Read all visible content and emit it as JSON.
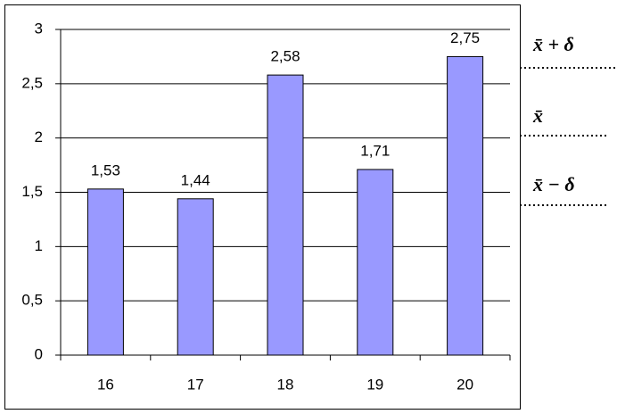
{
  "chart_data": {
    "type": "bar",
    "categories": [
      "16",
      "17",
      "18",
      "19",
      "20"
    ],
    "values": [
      1.53,
      1.44,
      2.58,
      1.71,
      2.75
    ],
    "value_labels": [
      "1,53",
      "1,44",
      "2,58",
      "1,71",
      "2,75"
    ],
    "color": "#9999ff",
    "ylim": [
      0,
      3
    ],
    "yticks": [
      0,
      {
        "value": 0.5,
        "label": "0,5"
      },
      1,
      {
        "value": 1.5,
        "label": "1,5"
      },
      2,
      {
        "value": 2.5,
        "label": "2,5"
      },
      3
    ],
    "grid": true,
    "annotations": [
      "x̄ + δ",
      "x̄",
      "x̄ − δ"
    ]
  }
}
